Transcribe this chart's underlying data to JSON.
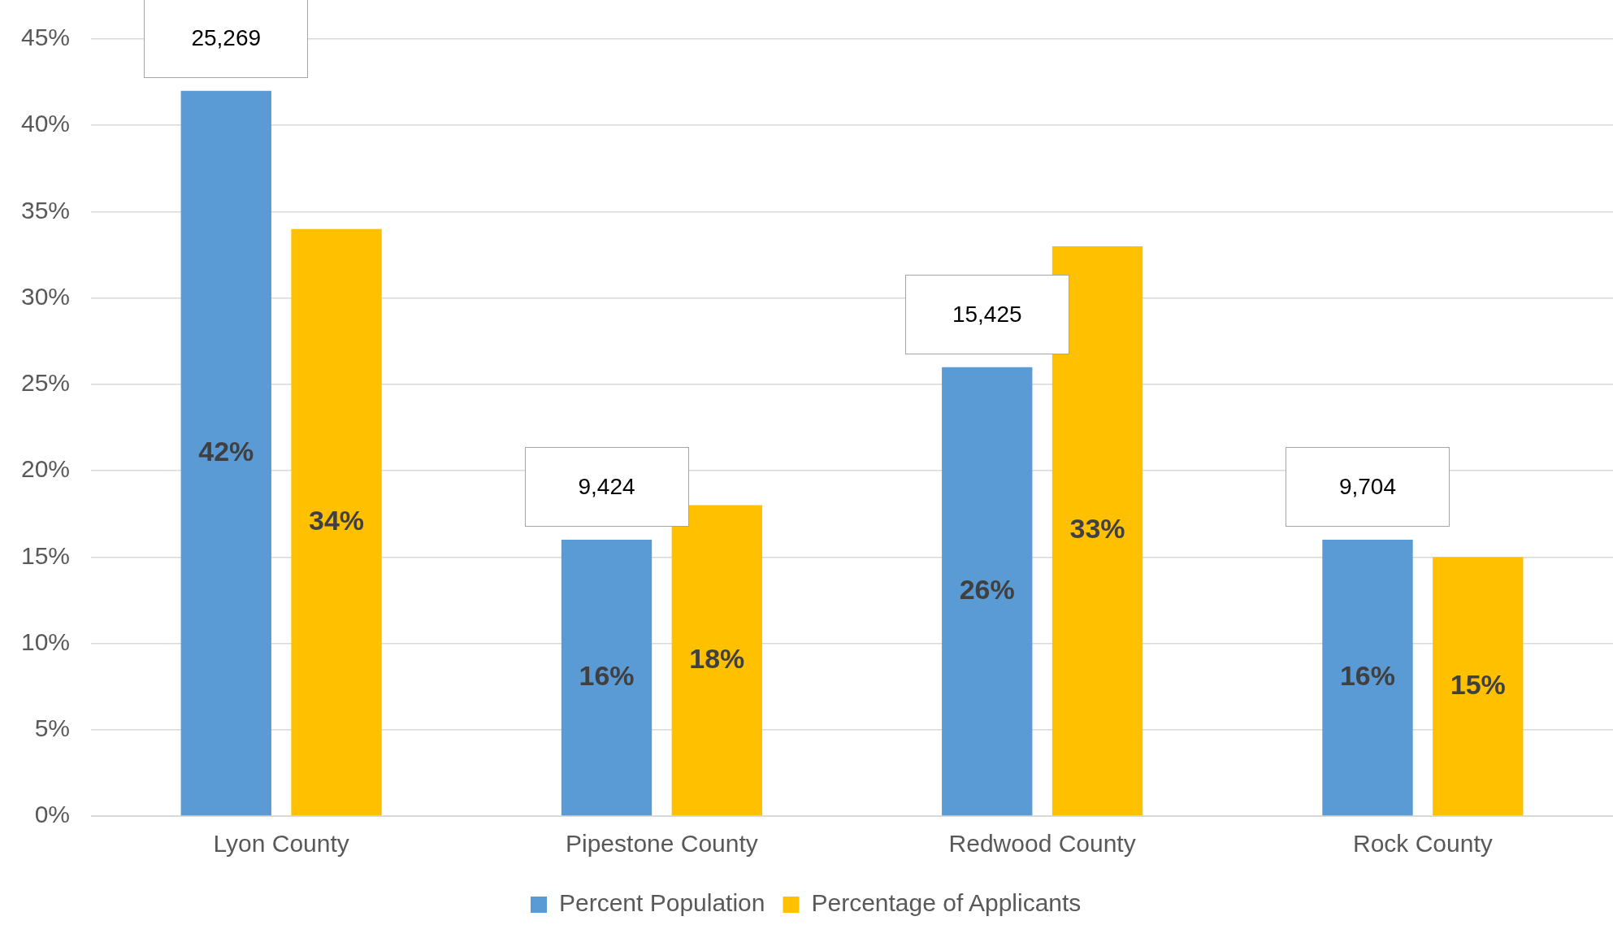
{
  "chart_data": {
    "type": "bar",
    "categories": [
      "Lyon County",
      "Pipestone County",
      "Redwood County",
      "Rock County"
    ],
    "series": [
      {
        "name": "Percent Population",
        "color": "#5b9bd5",
        "values": [
          42,
          16,
          26,
          16
        ],
        "value_labels": [
          "42%",
          "16%",
          "26%",
          "16%"
        ]
      },
      {
        "name": "Percentage of Applicants",
        "color": "#ffc000",
        "values": [
          34,
          18,
          33,
          15
        ],
        "value_labels": [
          "34%",
          "18%",
          "33%",
          "15%"
        ]
      }
    ],
    "ylim": [
      0,
      45
    ],
    "yticks": [
      {
        "value": 0,
        "label": "0%"
      },
      {
        "value": 5,
        "label": "5%"
      },
      {
        "value": 10,
        "label": "10%"
      },
      {
        "value": 15,
        "label": "15%"
      },
      {
        "value": 20,
        "label": "20%"
      },
      {
        "value": 25,
        "label": "25%"
      },
      {
        "value": 30,
        "label": "30%"
      },
      {
        "value": 35,
        "label": "35%"
      },
      {
        "value": 40,
        "label": "40%"
      },
      {
        "value": 45,
        "label": "45%"
      }
    ],
    "annotations": [
      "25,269",
      "9,424",
      "15,425",
      "9,704"
    ],
    "grid": "y",
    "legend": "bottom"
  }
}
